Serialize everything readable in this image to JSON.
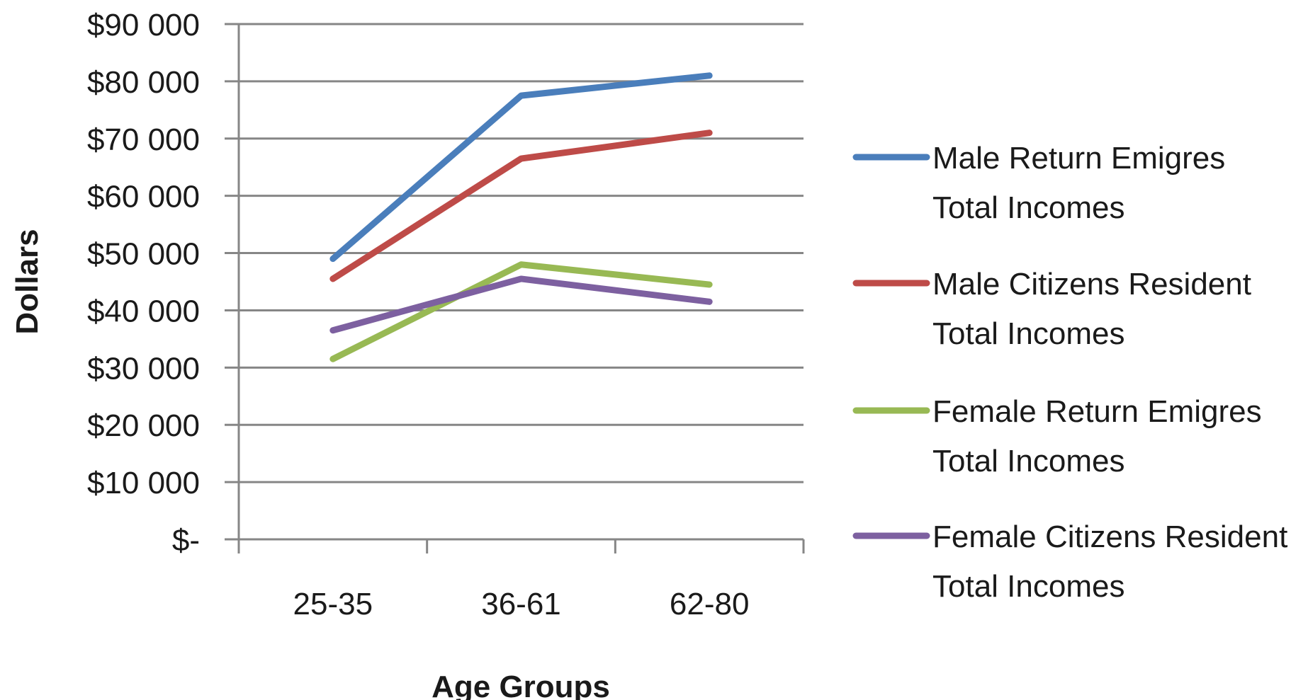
{
  "chart_data": {
    "type": "line",
    "title": "",
    "xlabel": "Age Groups",
    "ylabel": "Dollars",
    "categories": [
      "25-35",
      "36-61",
      "62-80"
    ],
    "ylim": [
      0,
      90000
    ],
    "yticks": [
      0,
      10000,
      20000,
      30000,
      40000,
      50000,
      60000,
      70000,
      80000,
      90000
    ],
    "ytick_labels": [
      "$-",
      "$10 000",
      "$20 000",
      "$30 000",
      "$40 000",
      "$50 000",
      "$60 000",
      "$70 000",
      "$80 000",
      "$90 000"
    ],
    "grid": "horizontal",
    "legend_position": "right",
    "series": [
      {
        "name": "Male Return Emigres Total Incomes",
        "legend_lines": [
          "Male Return Emigres",
          "Total Incomes"
        ],
        "color": "#4a7ebb",
        "values": [
          49000,
          77500,
          81000
        ]
      },
      {
        "name": "Male Citizens Resident Total Incomes",
        "legend_lines": [
          "Male Citizens Resident",
          "Total Incomes"
        ],
        "color": "#be4b48",
        "values": [
          45500,
          66500,
          71000
        ]
      },
      {
        "name": "Female Return Emigres Total Incomes",
        "legend_lines": [
          "Female Return  Emigres",
          "Total Incomes"
        ],
        "color": "#98b954",
        "values": [
          31500,
          48000,
          44500
        ]
      },
      {
        "name": "Female Citizens Resident Total Incomes",
        "legend_lines": [
          "Female Citizens Resident",
          "Total Incomes"
        ],
        "color": "#7d60a0",
        "values": [
          36500,
          45500,
          41500
        ]
      }
    ]
  }
}
